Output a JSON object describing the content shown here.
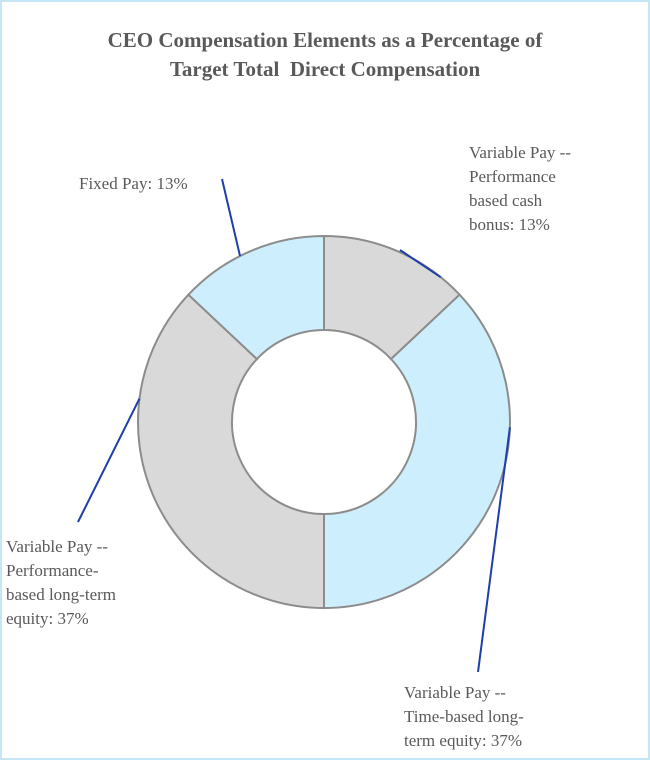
{
  "chart_data": {
    "type": "pie",
    "title_lines": [
      "CEO Compensation Elements as a Percentage of",
      "Target Total  Direct Compensation"
    ],
    "categories": [
      "Variable Pay -- Performance based cash bonus",
      "Variable Pay -- Time-based long-term equity",
      "Variable Pay -- Performance-based long-term equity",
      "Fixed Pay"
    ],
    "values": [
      13,
      37,
      37,
      13
    ],
    "unit": "%",
    "donut": true,
    "slice_colors": [
      "#d9d9d9",
      "#cdeefc",
      "#d9d9d9",
      "#cdeefc"
    ],
    "data_labels": [
      [
        "Variable Pay --",
        "Performance",
        "based cash",
        "bonus: 13%"
      ],
      [
        "Variable Pay --",
        "Time-based long-",
        "term equity: 37%"
      ],
      [
        "Variable Pay --",
        "Performance-",
        "based long-term",
        "equity: 37%"
      ],
      [
        "Fixed Pay: 13%"
      ]
    ],
    "legend": "none"
  }
}
